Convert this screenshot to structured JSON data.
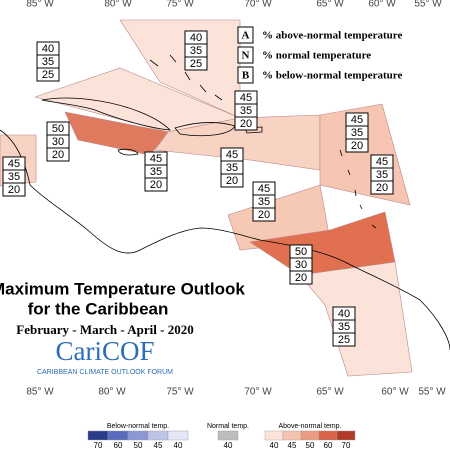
{
  "longitudes_top": [
    "85° W",
    "80° W",
    "75° W",
    "70° W",
    "65° W",
    "60° W",
    "55° W"
  ],
  "longitudes_bottom": [
    "85° W",
    "80° W",
    "75° W",
    "70° W",
    "65° W",
    "60° W",
    "55° W"
  ],
  "key": [
    {
      "letter": "A",
      "text": "% above-normal temperature"
    },
    {
      "letter": "N",
      "text": "% normal temperature"
    },
    {
      "letter": "B",
      "text": "% below-normal temperature"
    }
  ],
  "regions": [
    [
      40,
      35,
      25
    ],
    [
      40,
      35,
      25
    ],
    [
      45,
      35,
      20
    ],
    [
      45,
      35,
      20
    ],
    [
      50,
      30,
      20
    ],
    [
      45,
      35,
      20
    ],
    [
      45,
      35,
      20
    ],
    [
      45,
      35,
      20
    ],
    [
      45,
      35,
      20
    ],
    [
      45,
      35,
      20
    ],
    [
      50,
      30,
      20
    ],
    [
      40,
      35,
      25
    ]
  ],
  "title": "Maximum Temperature Outlook",
  "subtitle": "for the Caribbean",
  "period": "February - March - April - 2020",
  "logo": "CariCOF",
  "logo_caption": "CARIBBEAN CLIMATE OUTLOOK FORUM",
  "legend": {
    "below": {
      "label": "Below-normal temp.",
      "ticks": [
        70,
        60,
        50,
        45,
        40
      ]
    },
    "normal": {
      "label": "Normal temp.",
      "ticks": [
        40
      ]
    },
    "above": {
      "label": "Above-normal temp.",
      "ticks": [
        40,
        45,
        50,
        60,
        70
      ]
    }
  }
}
